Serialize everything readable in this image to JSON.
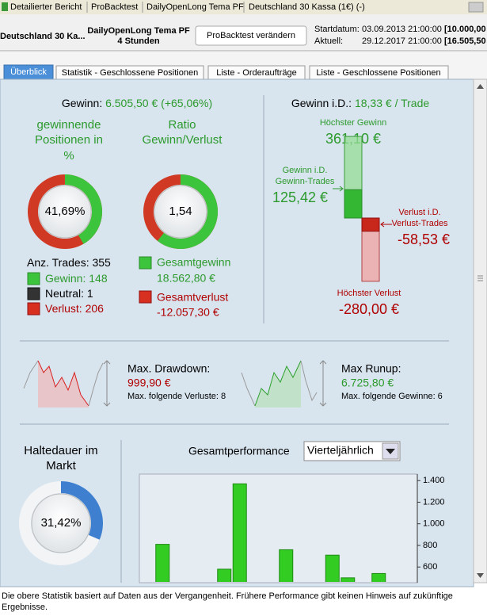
{
  "window_tabs": [
    "Detailierter Bericht",
    "ProBacktest",
    "DailyOpenLong Tema PF",
    "Deutschland 30 Kassa (1€) (-)"
  ],
  "header": {
    "instrument": "Deutschland 30 Ka...",
    "strategy": "DailyOpenLong Tema PF",
    "timeframe": "4 Stunden",
    "button": "ProBacktest verändern",
    "start_label": "Startdatum:",
    "start_date": "03.09.2013 21:00:00",
    "start_capital": "[10.000,00",
    "current_label": "Aktuell:",
    "current_date": "29.12.2017 21:00:00",
    "current_capital": "[16.505,50"
  },
  "tabs": [
    "Überblick",
    "Statistik - Geschlossene Positionen",
    "Liste - Orderaufträge",
    "Liste - Geschlossene Positionen"
  ],
  "overview": {
    "gain_label": "Gewinn:",
    "gain": "6.505,50 € (+65,06%)",
    "win_rate": {
      "title": [
        "gewinnende",
        "Positionen in",
        "%"
      ],
      "value": 41.69,
      "label": "41,69%"
    },
    "ratio": {
      "title": [
        "Ratio",
        "Gewinn/Verlust"
      ],
      "value": 1.54,
      "label": "1,54"
    },
    "trades": {
      "label": "Anz. Trades:",
      "count": 355,
      "items": [
        {
          "label": "Gewinn:",
          "count": 148
        },
        {
          "label": "Neutral:",
          "count": 1
        },
        {
          "label": "Verlust:",
          "count": 206
        }
      ]
    },
    "totals": [
      {
        "label": "Gesamtgewinn",
        "value": "18.562,80 €"
      },
      {
        "label": "Gesamtverlust",
        "value": "-12.057,30 €"
      }
    ],
    "per_trade": {
      "label": "Gewinn i.D.:",
      "value": "18,33 € / Trade",
      "max_gain": {
        "title": "Höchster Gewinn",
        "value": 361.1,
        "label": "361,10 €"
      },
      "avg_gain": {
        "title": [
          "Gewinn i.D.",
          "Gewinn-Trades"
        ],
        "value": 125.42,
        "label": "125,42 €"
      },
      "avg_loss": {
        "title": [
          "Verlust i.D.",
          "Verlust-Trades"
        ],
        "value": -58.53,
        "label": "-58,53 €"
      },
      "max_loss": {
        "title": "Höchster Verlust",
        "value": -280,
        "label": "-280,00 €"
      }
    }
  },
  "drawdown": {
    "title": "Max. Drawdown:",
    "value": "999,90 €",
    "note": "Max. folgende Verluste: 8"
  },
  "runup": {
    "title": "Max Runup:",
    "value": "6.725,80 €",
    "note": "Max. folgende Gewinne: 6"
  },
  "holding": {
    "title": [
      "Haltedauer im",
      "Markt"
    ],
    "value": 31.42,
    "label": "31,42%"
  },
  "performance": {
    "title": "Gesamtperformance",
    "period": "Vierteljährlich",
    "chart": {
      "type": "bar",
      "color": "#33cc22",
      "categories": [
        null,
        null,
        null,
        null,
        null,
        null,
        null,
        null,
        null,
        null,
        null,
        null,
        null,
        null,
        null,
        null,
        null,
        null
      ],
      "values": [
        null,
        810,
        null,
        null,
        null,
        580,
        1370,
        null,
        null,
        760,
        null,
        null,
        710,
        500,
        null,
        540,
        null,
        null
      ],
      "ylim": [
        0,
        1460
      ],
      "yticks": [
        {
          "value": 1400,
          "label": "1.400"
        },
        {
          "value": 1200,
          "label": "1.200"
        },
        {
          "value": 1000,
          "label": "1.000"
        },
        800,
        600
      ]
    }
  },
  "footer": "Die obere Statistik basiert auf Daten aus der Vergangenheit. Frühere Performance gibt keinen Hinweis auf zukünftige Ergebnisse."
}
